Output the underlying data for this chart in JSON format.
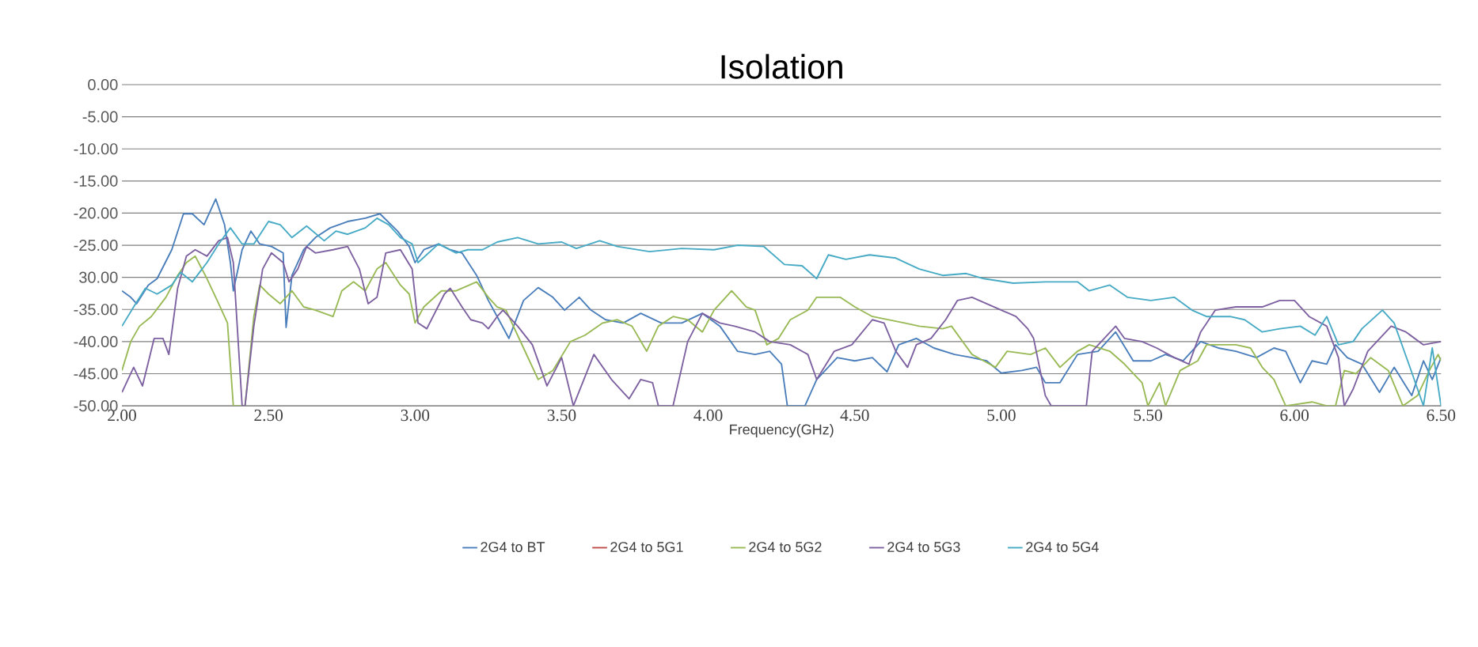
{
  "chart_data": {
    "type": "line",
    "title": "Isolation",
    "xlabel": "Frequency(GHz)",
    "xlim": [
      2,
      6.5
    ],
    "xticks": [
      {
        "value": 2,
        "label": "2.00"
      },
      {
        "value": 2.5,
        "label": "2.50"
      },
      {
        "value": 3,
        "label": "3.00"
      },
      {
        "value": 3.5,
        "label": "3.50"
      },
      {
        "value": 4,
        "label": "4.00"
      },
      {
        "value": 4.5,
        "label": "4.50"
      },
      {
        "value": 5,
        "label": "5.00"
      },
      {
        "value": 5.5,
        "label": "5.50"
      },
      {
        "value": 6,
        "label": "6.00"
      },
      {
        "value": 6.5,
        "label": "6.50"
      }
    ],
    "ylim": [
      -50,
      0
    ],
    "yticks": [
      {
        "value": 0,
        "label": "0.00"
      },
      {
        "value": -5,
        "label": "-5.00"
      },
      {
        "value": -10,
        "label": "-10.00"
      },
      {
        "value": -15,
        "label": "-15.00"
      },
      {
        "value": -20,
        "label": "-20.00"
      },
      {
        "value": -25,
        "label": "-25.00"
      },
      {
        "value": -30,
        "label": "30.00"
      },
      {
        "value": -35,
        "label": "-35.00"
      },
      {
        "value": -40,
        "label": "-40.00"
      },
      {
        "value": -45,
        "label": "-45.00"
      },
      {
        "value": -50,
        "label": "-50.00"
      }
    ],
    "grid": "y",
    "legend": "bottom",
    "marker": "none",
    "line_style": "solid",
    "series": [
      {
        "name": "2G4 to BT",
        "color": "#4a7ebb",
        "x": [
          2.0,
          2.03,
          2.05,
          2.09,
          2.12,
          2.17,
          2.21,
          2.24,
          2.28,
          2.32,
          2.35,
          2.37,
          2.38,
          2.41,
          2.44,
          2.47,
          2.51,
          2.55,
          2.56,
          2.58,
          2.62,
          2.66,
          2.71,
          2.77,
          2.83,
          2.88,
          2.94,
          2.98,
          3.0,
          3.03,
          3.08,
          3.12,
          3.16,
          3.21,
          3.25,
          3.28,
          3.32,
          3.37,
          3.42,
          3.47,
          3.51,
          3.56,
          3.6,
          3.65,
          3.71,
          3.77,
          3.84,
          3.91,
          3.98,
          4.04,
          4.1,
          4.16,
          4.21,
          4.25,
          4.27,
          4.33,
          4.37,
          4.44,
          4.5,
          4.56,
          4.61,
          4.65,
          4.71,
          4.77,
          4.84,
          4.9,
          4.95,
          5.0,
          5.07,
          5.12,
          5.15,
          5.2,
          5.26,
          5.33,
          5.39,
          5.45,
          5.51,
          5.56,
          5.62,
          5.68,
          5.74,
          5.8,
          5.87,
          5.93,
          5.97,
          6.02,
          6.06,
          6.11,
          6.14,
          6.18,
          6.23,
          6.29,
          6.34,
          6.4,
          6.44,
          6.47,
          6.5
        ],
        "values": [
          -32.1,
          -33.1,
          -34.1,
          -31.2,
          -30.2,
          -25.7,
          -20.1,
          -20.1,
          -21.8,
          -17.8,
          -21.8,
          -27.7,
          -32.1,
          -25.7,
          -22.8,
          -24.8,
          -25.2,
          -26.2,
          -37.8,
          -29.7,
          -25.7,
          -23.8,
          -22.3,
          -21.3,
          -20.8,
          -20.1,
          -22.8,
          -25.2,
          -27.7,
          -25.7,
          -24.8,
          -25.7,
          -26.2,
          -29.7,
          -33.6,
          -36.1,
          -39.5,
          -33.6,
          -31.6,
          -33.1,
          -35.1,
          -33.1,
          -35.1,
          -36.6,
          -37.1,
          -35.6,
          -37.1,
          -37.1,
          -35.6,
          -37.6,
          -41.5,
          -42.0,
          -41.5,
          -43.5,
          -50,
          -50,
          -45.9,
          -42.5,
          -43.0,
          -42.5,
          -44.7,
          -40.5,
          -39.5,
          -41.0,
          -42.0,
          -42.5,
          -43.0,
          -44.9,
          -44.5,
          -44.0,
          -46.4,
          -46.4,
          -42.0,
          -41.5,
          -38.5,
          -43.0,
          -43.0,
          -42.0,
          -43.0,
          -40.0,
          -41.0,
          -41.5,
          -42.5,
          -41.0,
          -41.5,
          -46.4,
          -43.0,
          -43.5,
          -40.5,
          -42.5,
          -43.5,
          -47.9,
          -44.0,
          -48.4,
          -43.0,
          -45.9,
          -42.5
        ]
      },
      {
        "name": "2G4 to 5G1",
        "color": "#be4b48"
      },
      {
        "name": "2G4 to 5G2",
        "color": "#98b954",
        "x": [
          2.0,
          2.03,
          2.06,
          2.1,
          2.15,
          2.19,
          2.22,
          2.25,
          2.29,
          2.33,
          2.36,
          2.38,
          2.42,
          2.45,
          2.47,
          2.5,
          2.54,
          2.58,
          2.62,
          2.66,
          2.72,
          2.75,
          2.79,
          2.83,
          2.87,
          2.9,
          2.95,
          2.98,
          3.0,
          3.03,
          3.09,
          3.14,
          3.21,
          3.25,
          3.28,
          3.31,
          3.37,
          3.42,
          3.47,
          3.53,
          3.58,
          3.64,
          3.69,
          3.74,
          3.79,
          3.83,
          3.88,
          3.93,
          3.98,
          4.02,
          4.08,
          4.13,
          4.16,
          4.2,
          4.24,
          4.28,
          4.34,
          4.37,
          4.45,
          4.5,
          4.56,
          4.67,
          4.72,
          4.8,
          4.83,
          4.86,
          4.9,
          4.94,
          4.98,
          5.02,
          5.1,
          5.15,
          5.2,
          5.26,
          5.3,
          5.37,
          5.42,
          5.48,
          5.5,
          5.54,
          5.56,
          5.61,
          5.67,
          5.7,
          5.76,
          5.8,
          5.85,
          5.89,
          5.93,
          5.97,
          6.06,
          6.11,
          6.14,
          6.17,
          6.21,
          6.26,
          6.32,
          6.37,
          6.42,
          6.46,
          6.49,
          6.5
        ],
        "values": [
          -44.5,
          -40.0,
          -37.6,
          -36.1,
          -33.1,
          -29.7,
          -27.7,
          -26.7,
          -30.2,
          -34.1,
          -37.1,
          -50,
          -50,
          -36.1,
          -31.2,
          -32.6,
          -34.1,
          -32.1,
          -34.6,
          -35.1,
          -36.1,
          -32.1,
          -30.7,
          -32.1,
          -28.7,
          -27.7,
          -31.2,
          -32.6,
          -37.1,
          -34.6,
          -32.1,
          -32.1,
          -30.7,
          -33.1,
          -34.6,
          -35.1,
          -41.0,
          -45.9,
          -44.5,
          -40.0,
          -39.0,
          -37.1,
          -36.6,
          -37.6,
          -41.5,
          -37.6,
          -36.1,
          -36.6,
          -38.5,
          -35.1,
          -32.1,
          -34.6,
          -35.1,
          -40.5,
          -39.5,
          -36.6,
          -35.1,
          -33.1,
          -33.1,
          -34.6,
          -36.1,
          -37.1,
          -37.6,
          -38.0,
          -37.6,
          -39.5,
          -42.0,
          -43.0,
          -44.0,
          -41.5,
          -42.0,
          -41.0,
          -44.0,
          -41.5,
          -40.5,
          -41.5,
          -43.5,
          -46.4,
          -50,
          -46.4,
          -50,
          -44.5,
          -43.0,
          -40.5,
          -40.5,
          -40.5,
          -41.0,
          -44.0,
          -45.9,
          -50,
          -49.4,
          -50,
          -50,
          -44.5,
          -45.0,
          -42.5,
          -44.5,
          -50,
          -48.4,
          -44.5,
          -42.0,
          -43.0
        ]
      },
      {
        "name": "2G4 to 5G3",
        "color": "#7d60a0",
        "x": [
          2.0,
          2.04,
          2.07,
          2.11,
          2.14,
          2.16,
          2.19,
          2.22,
          2.25,
          2.29,
          2.33,
          2.36,
          2.38,
          2.41,
          2.42,
          2.45,
          2.48,
          2.51,
          2.55,
          2.57,
          2.6,
          2.63,
          2.66,
          2.72,
          2.77,
          2.81,
          2.84,
          2.87,
          2.9,
          2.95,
          2.99,
          3.01,
          3.04,
          3.1,
          3.12,
          3.16,
          3.19,
          3.23,
          3.25,
          3.28,
          3.3,
          3.35,
          3.4,
          3.45,
          3.5,
          3.54,
          3.61,
          3.67,
          3.73,
          3.77,
          3.81,
          3.83,
          3.88,
          3.93,
          3.98,
          4.04,
          4.09,
          4.16,
          4.21,
          4.28,
          4.34,
          4.37,
          4.43,
          4.49,
          4.56,
          4.6,
          4.64,
          4.68,
          4.71,
          4.76,
          4.81,
          4.85,
          4.9,
          4.95,
          5.0,
          5.05,
          5.09,
          5.11,
          5.15,
          5.17,
          5.29,
          5.31,
          5.39,
          5.42,
          5.48,
          5.53,
          5.59,
          5.64,
          5.68,
          5.73,
          5.8,
          5.89,
          5.95,
          6.0,
          6.05,
          6.11,
          6.15,
          6.17,
          6.2,
          6.25,
          6.33,
          6.38,
          6.44,
          6.5
        ],
        "values": [
          -47.9,
          -44.0,
          -46.9,
          -39.5,
          -39.5,
          -42.0,
          -31.7,
          -26.7,
          -25.7,
          -26.7,
          -24.3,
          -23.8,
          -27.7,
          -50,
          -50,
          -37.6,
          -28.7,
          -26.2,
          -27.7,
          -30.7,
          -28.7,
          -25.2,
          -26.2,
          -25.7,
          -25.2,
          -28.7,
          -34.1,
          -33.1,
          -26.2,
          -25.7,
          -28.7,
          -37.1,
          -38.0,
          -32.6,
          -31.7,
          -34.6,
          -36.6,
          -37.1,
          -38.0,
          -36.1,
          -35.1,
          -37.6,
          -40.5,
          -46.9,
          -42.5,
          -50,
          -42.0,
          -45.9,
          -48.9,
          -45.9,
          -46.4,
          -50,
          -50,
          -40.0,
          -35.6,
          -37.1,
          -37.6,
          -38.5,
          -40.0,
          -40.5,
          -42.0,
          -45.9,
          -41.5,
          -40.5,
          -36.6,
          -37.1,
          -41.5,
          -44.0,
          -40.5,
          -39.5,
          -36.6,
          -33.6,
          -33.1,
          -34.1,
          -35.1,
          -36.1,
          -38.0,
          -39.5,
          -48.4,
          -50,
          -50,
          -41.5,
          -37.6,
          -39.5,
          -40.0,
          -41.0,
          -42.5,
          -43.5,
          -38.5,
          -35.1,
          -34.6,
          -34.6,
          -33.6,
          -33.6,
          -36.1,
          -37.6,
          -42.5,
          -50,
          -47.4,
          -41.5,
          -37.6,
          -38.5,
          -40.5,
          -40.0
        ]
      },
      {
        "name": "2G4 to 5G4",
        "color": "#46aac5",
        "x": [
          2.0,
          2.04,
          2.08,
          2.12,
          2.17,
          2.2,
          2.24,
          2.29,
          2.33,
          2.37,
          2.41,
          2.45,
          2.5,
          2.54,
          2.58,
          2.63,
          2.69,
          2.73,
          2.77,
          2.83,
          2.87,
          2.91,
          2.95,
          2.99,
          3.01,
          3.08,
          3.14,
          3.18,
          3.23,
          3.28,
          3.35,
          3.42,
          3.5,
          3.55,
          3.63,
          3.69,
          3.8,
          3.91,
          4.02,
          4.1,
          4.19,
          4.26,
          4.32,
          4.37,
          4.41,
          4.47,
          4.55,
          4.64,
          4.72,
          4.8,
          4.88,
          4.94,
          5.04,
          5.15,
          5.26,
          5.3,
          5.37,
          5.43,
          5.51,
          5.59,
          5.65,
          5.7,
          5.78,
          5.83,
          5.89,
          5.95,
          6.02,
          6.07,
          6.11,
          6.15,
          6.2,
          6.23,
          6.3,
          6.34,
          6.39,
          6.44,
          6.47,
          6.5
        ],
        "values": [
          -37.6,
          -34.6,
          -31.7,
          -32.6,
          -31.2,
          -29.2,
          -30.7,
          -27.7,
          -24.8,
          -22.3,
          -24.8,
          -24.8,
          -21.3,
          -21.8,
          -23.8,
          -22.0,
          -24.3,
          -22.8,
          -23.3,
          -22.3,
          -20.8,
          -21.8,
          -23.8,
          -24.8,
          -27.7,
          -24.8,
          -26.2,
          -25.7,
          -25.7,
          -24.5,
          -23.8,
          -24.8,
          -24.5,
          -25.5,
          -24.3,
          -25.2,
          -26.0,
          -25.5,
          -25.7,
          -25.0,
          -25.2,
          -28.0,
          -28.2,
          -30.2,
          -26.5,
          -27.2,
          -26.5,
          -27.0,
          -28.7,
          -29.7,
          -29.4,
          -30.2,
          -30.9,
          -30.7,
          -30.7,
          -32.1,
          -31.2,
          -33.1,
          -33.6,
          -33.1,
          -35.1,
          -36.1,
          -36.1,
          -36.6,
          -38.5,
          -38.0,
          -37.6,
          -39.0,
          -36.1,
          -40.5,
          -40.0,
          -38.0,
          -35.1,
          -37.1,
          -43.5,
          -50,
          -41.0,
          -50
        ]
      }
    ]
  }
}
